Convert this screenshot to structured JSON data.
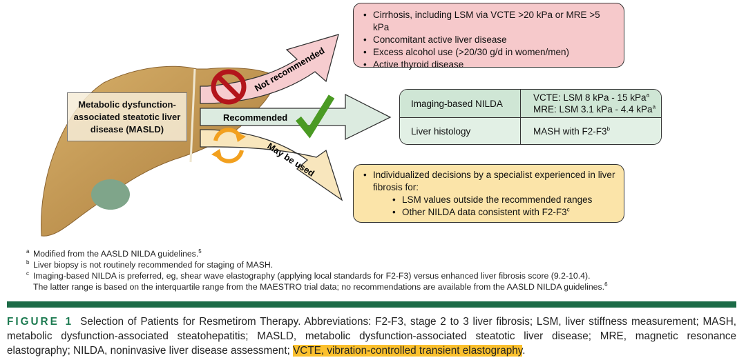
{
  "diagram": {
    "center_label": "Metabolic dysfunction-associated steatotic liver disease (MASLD)",
    "arrows": [
      {
        "label": "Not recommended",
        "icon": "prohibited-icon",
        "color": "#f6cccf"
      },
      {
        "label": "Recommended",
        "icon": "checkmark-icon",
        "color": "#dcebe0"
      },
      {
        "label": "May be used",
        "icon": "refresh-cycle-icon",
        "color": "#f8e6bd"
      }
    ],
    "not_recommended_items": [
      "Cirrhosis, including LSM via VCTE >20 kPa or MRE >5 kPa",
      "Concomitant active liver disease",
      "Excess alcohol use (>20/30 g/d in women/men)",
      "Active thyroid disease"
    ],
    "recommended_table": [
      {
        "criterion": "Imaging-based NILDA",
        "values": [
          "VCTE: LSM 8 kPa - 15 kPa",
          "MRE: LSM 3.1 kPa - 4.4 kPa"
        ],
        "sups": [
          "a",
          "a"
        ]
      },
      {
        "criterion": "Liver histology",
        "values": [
          "MASH with F2-F3"
        ],
        "sups": [
          "b"
        ]
      }
    ],
    "may_be_used": {
      "intro": "Individualized decisions by a specialist experienced in liver fibrosis for:",
      "items": [
        "LSM values outside the recommended ranges",
        "Other NILDA data consistent with F2-F3"
      ],
      "sups": [
        "",
        "c"
      ]
    }
  },
  "footnotes": [
    {
      "sym": "a",
      "text": "Modified from the AASLD NILDA guidelines.",
      "ref": "5"
    },
    {
      "sym": "b",
      "text": "Liver biopsy is not routinely recommended for staging of MASH.",
      "ref": ""
    },
    {
      "sym": "c",
      "text": "Imaging-based NILDA is preferred, eg, shear wave elastography (applying local standards for F2-F3) versus enhanced liver fibrosis score (9.2-10.4).",
      "ref": ""
    },
    {
      "sym": "",
      "text": "The latter range is based on the interquartile range from the MAESTRO trial data; no recommendations are available from the AASLD NILDA guidelines.",
      "ref": "6"
    }
  ],
  "caption": {
    "label": "FIGURE 1",
    "text": "Selection of Patients for Resmetirom Therapy. Abbreviations: F2-F3, stage 2 to 3 liver fibrosis; LSM, liver stiffness measurement; MASH, metabolic dysfunction-associated steatohepatitis; MASLD, metabolic dysfunction-associated steatotic liver disease; MRE, magnetic resonance elastography; NILDA, noninvasive liver disease assessment; ",
    "highlighted": "VCTE, vibration-controlled transient elastography",
    "end": "."
  },
  "colors": {
    "accent_green": "#1c6b47",
    "highlight": "#fbc02d"
  }
}
